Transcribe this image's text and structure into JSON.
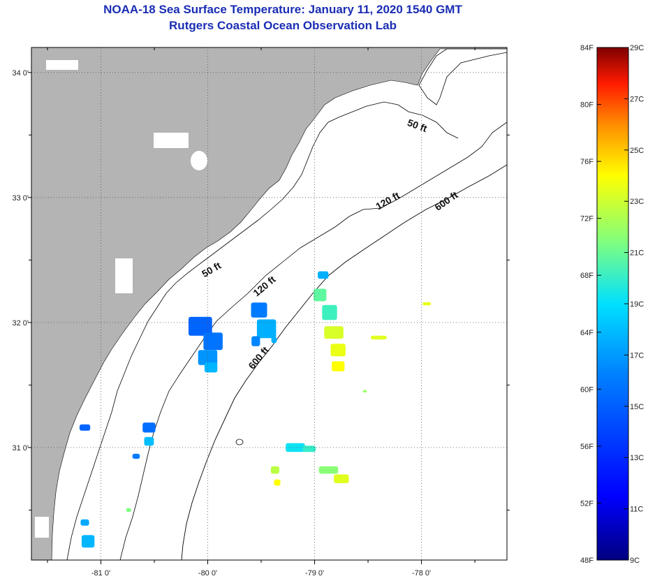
{
  "header": {
    "title": "NOAA-18 Sea Surface Temperature:  January 11, 2020 1540 GMT",
    "subtitle": "Rutgers Coastal Ocean Observation Lab"
  },
  "map": {
    "lon_range": [
      -81.65,
      -77.2
    ],
    "lat_range": [
      30.1,
      34.2
    ],
    "lon_ticks": [
      {
        "value": -81,
        "label": "-81 0'"
      },
      {
        "value": -80,
        "label": "-80 0'"
      },
      {
        "value": -79,
        "label": "-79 0'"
      },
      {
        "value": -78,
        "label": "-78 0'"
      }
    ],
    "lat_ticks": [
      {
        "value": 34,
        "label": "34 0'"
      },
      {
        "value": 33,
        "label": "33 0'"
      },
      {
        "value": 32,
        "label": "32 0'"
      },
      {
        "value": 31,
        "label": "31 0'"
      }
    ],
    "contours": [
      {
        "depth": "50 ft",
        "label": "50 ft"
      },
      {
        "depth": "120 ft",
        "label": "120 ft"
      },
      {
        "depth": "600 ft",
        "label": "600 ft"
      }
    ],
    "contour_label_positions": [
      {
        "label": "50 ft",
        "lon": -78.05,
        "lat": 33.55,
        "angle": 20
      },
      {
        "label": "50 ft",
        "lon": -79.95,
        "lat": 32.4,
        "angle": -30
      },
      {
        "label": "120 ft",
        "lon": -78.3,
        "lat": 32.95,
        "angle": -30
      },
      {
        "label": "120 ft",
        "lon": -79.45,
        "lat": 32.27,
        "angle": -40
      },
      {
        "label": "600 ft",
        "lon": -77.75,
        "lat": 32.95,
        "angle": -35
      },
      {
        "label": "600 ft",
        "lon": -79.5,
        "lat": 31.7,
        "angle": -50
      }
    ],
    "land_color": "#b4b4b4",
    "water_color": "#ffffff",
    "sst_patches": [
      {
        "lon": -80.07,
        "lat": 31.97,
        "w": 0.22,
        "h": 0.15,
        "temp_c": 15.2
      },
      {
        "lon": -79.95,
        "lat": 31.85,
        "w": 0.18,
        "h": 0.14,
        "temp_c": 15.8
      },
      {
        "lon": -80.0,
        "lat": 31.72,
        "w": 0.18,
        "h": 0.12,
        "temp_c": 16.8
      },
      {
        "lon": -79.97,
        "lat": 31.64,
        "w": 0.12,
        "h": 0.08,
        "temp_c": 17.8
      },
      {
        "lon": -79.52,
        "lat": 32.1,
        "w": 0.15,
        "h": 0.12,
        "temp_c": 16.0
      },
      {
        "lon": -79.45,
        "lat": 31.95,
        "w": 0.18,
        "h": 0.15,
        "temp_c": 17.6
      },
      {
        "lon": -79.55,
        "lat": 31.85,
        "w": 0.08,
        "h": 0.08,
        "temp_c": 16.4
      },
      {
        "lon": -78.92,
        "lat": 32.38,
        "w": 0.1,
        "h": 0.06,
        "temp_c": 17.6
      },
      {
        "lon": -78.95,
        "lat": 32.22,
        "w": 0.12,
        "h": 0.1,
        "temp_c": 20.8
      },
      {
        "lon": -78.86,
        "lat": 32.08,
        "w": 0.14,
        "h": 0.12,
        "temp_c": 20.2
      },
      {
        "lon": -78.82,
        "lat": 31.92,
        "w": 0.18,
        "h": 0.1,
        "temp_c": 23.2
      },
      {
        "lon": -78.78,
        "lat": 31.78,
        "w": 0.14,
        "h": 0.1,
        "temp_c": 23.6
      },
      {
        "lon": -78.78,
        "lat": 31.65,
        "w": 0.12,
        "h": 0.08,
        "temp_c": 24.0
      },
      {
        "lon": -78.4,
        "lat": 31.88,
        "w": 0.15,
        "h": 0.03,
        "temp_c": 23.4
      },
      {
        "lon": -77.95,
        "lat": 32.15,
        "w": 0.08,
        "h": 0.025,
        "temp_c": 23.6
      },
      {
        "lon": -80.55,
        "lat": 31.16,
        "w": 0.12,
        "h": 0.08,
        "temp_c": 15.6
      },
      {
        "lon": -80.55,
        "lat": 31.05,
        "w": 0.09,
        "h": 0.07,
        "temp_c": 18.0
      },
      {
        "lon": -81.15,
        "lat": 31.16,
        "w": 0.1,
        "h": 0.05,
        "temp_c": 15.2
      },
      {
        "lon": -80.67,
        "lat": 30.93,
        "w": 0.07,
        "h": 0.04,
        "temp_c": 16.0
      },
      {
        "lon": -79.18,
        "lat": 31.0,
        "w": 0.18,
        "h": 0.07,
        "temp_c": 19.2
      },
      {
        "lon": -79.05,
        "lat": 30.99,
        "w": 0.12,
        "h": 0.05,
        "temp_c": 20.0
      },
      {
        "lon": -79.37,
        "lat": 30.82,
        "w": 0.08,
        "h": 0.06,
        "temp_c": 22.6
      },
      {
        "lon": -79.35,
        "lat": 30.72,
        "w": 0.06,
        "h": 0.05,
        "temp_c": 24.0
      },
      {
        "lon": -78.87,
        "lat": 30.82,
        "w": 0.18,
        "h": 0.06,
        "temp_c": 21.6
      },
      {
        "lon": -78.75,
        "lat": 30.75,
        "w": 0.14,
        "h": 0.07,
        "temp_c": 23.4
      },
      {
        "lon": -81.15,
        "lat": 30.4,
        "w": 0.08,
        "h": 0.05,
        "temp_c": 17.4
      },
      {
        "lon": -81.12,
        "lat": 30.25,
        "w": 0.12,
        "h": 0.1,
        "temp_c": 17.8
      },
      {
        "lon": -80.74,
        "lat": 30.5,
        "w": 0.05,
        "h": 0.03,
        "temp_c": 21.4
      },
      {
        "lon": -79.38,
        "lat": 31.86,
        "w": 0.05,
        "h": 0.05,
        "temp_c": 17.6
      },
      {
        "lon": -78.53,
        "lat": 31.45,
        "w": 0.04,
        "h": 0.02,
        "temp_c": 22.0
      }
    ]
  },
  "colorbar": {
    "f_labels": [
      "84F",
      "80F",
      "76F",
      "72F",
      "68F",
      "64F",
      "60F",
      "56F",
      "52F",
      "48F"
    ],
    "c_labels": [
      "29C",
      "27C",
      "25C",
      "23C",
      "21C",
      "19C",
      "17C",
      "15C",
      "13C",
      "11C",
      "9C"
    ],
    "range_c": [
      9,
      29
    ],
    "colors": [
      "#00007f",
      "#0000ff",
      "#007fff",
      "#00ffff",
      "#7fff7f",
      "#ffff00",
      "#ff7f00",
      "#ff0000",
      "#7f0000"
    ]
  }
}
